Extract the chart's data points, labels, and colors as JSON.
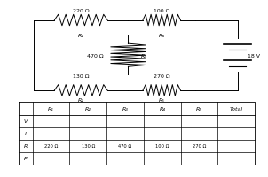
{
  "background_color": "#ffffff",
  "circuit": {
    "r1_label": "220 Ω",
    "r1_sub": "R₁",
    "r2_label": "130 Ω",
    "r2_sub": "R₂",
    "r3_label": "470 Ω",
    "r3_sub": "R₃",
    "r4_label": "100 Ω",
    "r4_sub": "R₄",
    "r5_label": "270 Ω",
    "r5_sub": "R₅",
    "battery_label": "18 V"
  },
  "table": {
    "col_labels": [
      "R₁",
      "R₂",
      "R₃",
      "R₄",
      "R₅",
      "Total"
    ],
    "row_labels": [
      "V",
      "I",
      "R",
      "P"
    ],
    "r_values": [
      "220 Ω",
      "130 Ω",
      "470 Ω",
      "100 Ω",
      "270 Ω",
      ""
    ]
  }
}
